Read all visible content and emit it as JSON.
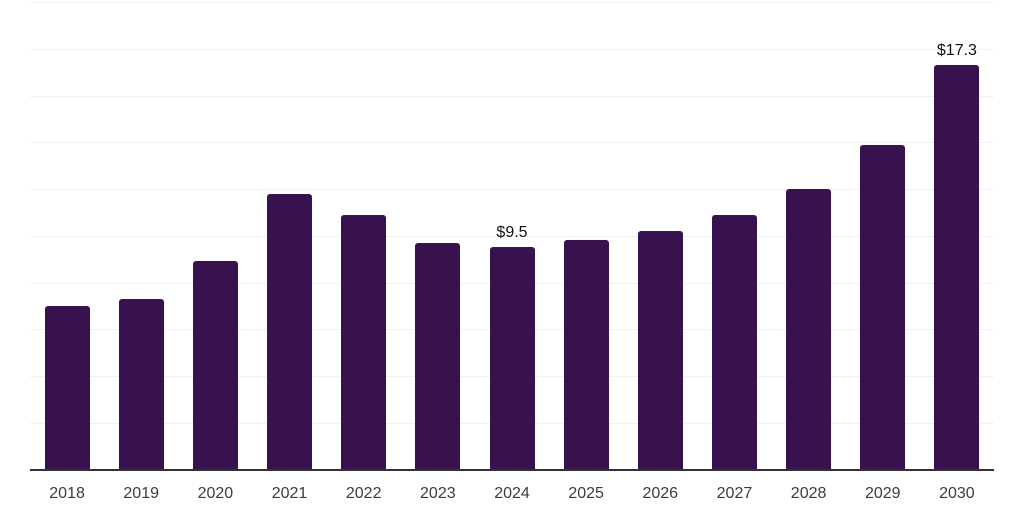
{
  "chart_data": {
    "type": "bar",
    "categories": [
      "2018",
      "2019",
      "2020",
      "2021",
      "2022",
      "2023",
      "2024",
      "2025",
      "2026",
      "2027",
      "2028",
      "2029",
      "2030"
    ],
    "values": [
      7.0,
      7.3,
      8.9,
      11.8,
      10.9,
      9.7,
      9.5,
      9.8,
      10.2,
      10.9,
      12.0,
      13.9,
      17.3
    ],
    "title": "",
    "xlabel": "",
    "ylabel": "",
    "ylim": [
      0,
      20
    ],
    "grid_step": 2,
    "grid": "horizontal light gray lines, no y-axis tick labels",
    "legend": "none",
    "annotations": [
      {
        "category": "2024",
        "label": "$9.5"
      },
      {
        "category": "2030",
        "label": "$17.3"
      }
    ]
  },
  "colors": {
    "background": "#ffffff",
    "bar": "#38124f",
    "gridline": "#f1f1f1",
    "axis": "#333333",
    "x_label": "#3c3c3c",
    "annotation": "#111111"
  }
}
